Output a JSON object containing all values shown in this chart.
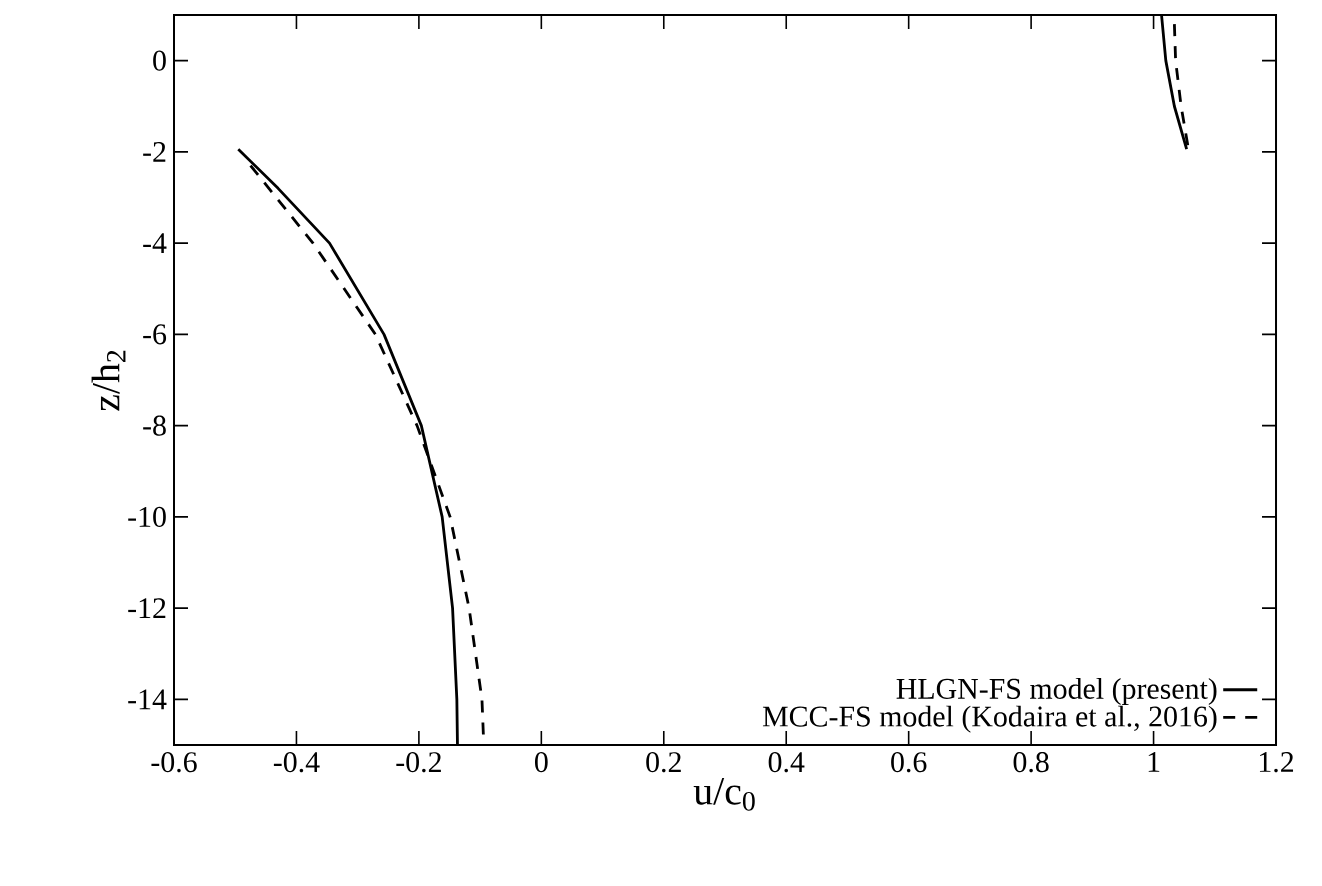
{
  "chart_data": {
    "type": "line",
    "xlabel": "u/c$_{0}$",
    "ylabel": "z/h$_{2}$",
    "xlim": [
      -0.6,
      1.2
    ],
    "ylim": [
      -15,
      1
    ],
    "xticks": [
      -0.6,
      -0.4,
      -0.2,
      0,
      0.2,
      0.4,
      0.6,
      0.8,
      1,
      1.2
    ],
    "yticks": [
      -14,
      -12,
      -10,
      -8,
      -6,
      -4,
      -2,
      0
    ],
    "legend": "bottom right",
    "grid": false,
    "marker": "none",
    "series": [
      {
        "name": "HLGN-FS model (present)",
        "color": "#000000",
        "line_style": "solid",
        "x": [
          -0.495,
          -0.43,
          -0.346,
          -0.257,
          -0.196,
          -0.162,
          -0.145,
          -0.138,
          -0.137,
          null,
          1.013,
          1.02,
          1.034,
          1.054
        ],
        "values": [
          -1.94,
          -2.8,
          -4,
          -6,
          -8,
          -10,
          -12,
          -14,
          -15,
          null,
          1,
          0,
          -1,
          -1.94
        ]
      },
      {
        "name": "MCC-FS model (Kodaira et al., 2016)",
        "color": "#000000",
        "line_style": "dashed",
        "x": [
          -0.475,
          -0.373,
          -0.271,
          -0.203,
          -0.149,
          -0.118,
          -0.097,
          -0.094,
          null,
          1.034,
          1.036,
          1.045,
          1.057
        ],
        "values": [
          -2.3,
          -4,
          -6,
          -8,
          -10,
          -12,
          -14,
          -15,
          null,
          0.8,
          0,
          -1,
          -1.94
        ]
      }
    ]
  }
}
